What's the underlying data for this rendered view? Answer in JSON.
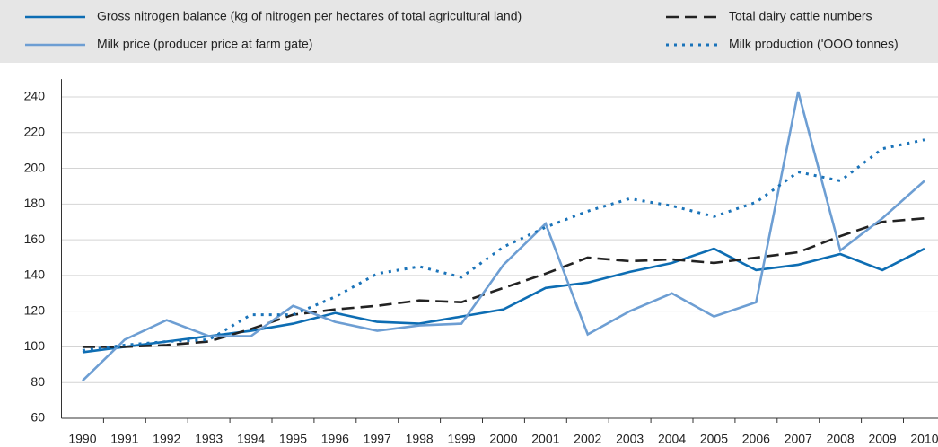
{
  "chart_data": {
    "type": "line",
    "categories": [
      "1990",
      "1991",
      "1992",
      "1993",
      "1994",
      "1995",
      "1996",
      "1997",
      "1998",
      "1999",
      "2000",
      "2001",
      "2002",
      "2003",
      "2004",
      "2005",
      "2006",
      "2007",
      "2008",
      "2009",
      "2010"
    ],
    "series": [
      {
        "name": "Gross nitrogen balance (kg of nitrogen per hectares of total agricultural land)",
        "color": "#0d6db3",
        "style": "solid",
        "values": [
          97,
          100,
          103,
          106,
          109,
          113,
          119,
          114,
          113,
          117,
          121,
          133,
          136,
          142,
          147,
          155,
          143,
          146,
          152,
          143,
          155
        ]
      },
      {
        "name": "Total dairy cattle numbers",
        "color": "#222222",
        "style": "dashed",
        "values": [
          100,
          100,
          101,
          103,
          110,
          118,
          121,
          123,
          126,
          125,
          133,
          141,
          150,
          148,
          149,
          147,
          150,
          153,
          162,
          170,
          172
        ]
      },
      {
        "name": "Milk price (producer price at farm gate)",
        "color": "#6d9ed3",
        "style": "solid",
        "values": [
          81,
          104,
          115,
          106,
          106,
          123,
          114,
          109,
          112,
          113,
          146,
          169,
          107,
          120,
          130,
          117,
          125,
          243,
          154,
          172,
          193
        ]
      },
      {
        "name": "Milk production ('OOO tonnes)",
        "color": "#1a73b9",
        "style": "dotted",
        "values": [
          98,
          101,
          103,
          104,
          118,
          118,
          128,
          141,
          145,
          139,
          156,
          167,
          176,
          183,
          179,
          173,
          181,
          198,
          193,
          211,
          216
        ]
      }
    ],
    "ylim": [
      60,
      250
    ],
    "yticks": [
      60,
      80,
      100,
      120,
      140,
      160,
      180,
      200,
      220,
      240
    ],
    "grid": true
  }
}
